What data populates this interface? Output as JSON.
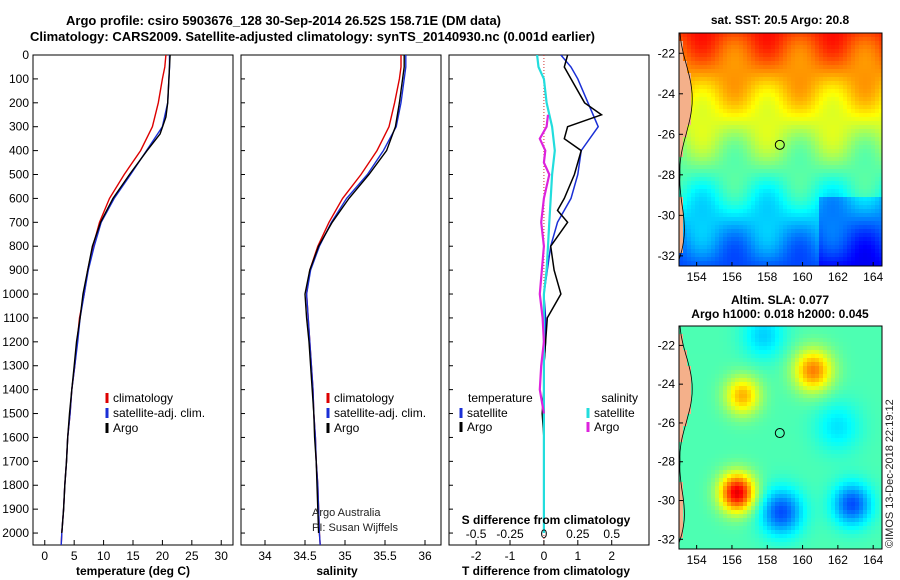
{
  "header": {
    "title_line1": "Argo profile: csiro 5903676_128 30-Sep-2014 26.52S 158.71E (DM data)",
    "title_line2": "Climatology: CARS2009. Satellite-adjusted climatology: synTS_20140930.nc (0.001d earlier)"
  },
  "credit": {
    "org": "Argo Australia",
    "pi": "PI: Susan Wijffels"
  },
  "stamp": "©IMOS 13-Dec-2018 22:19:12",
  "colors": {
    "climatology": "#dd0000",
    "satellite": "#1a2fd6",
    "argo": "#000000",
    "s_satellite": "#22dddd",
    "s_argo": "#dd22dd"
  },
  "chart_data": [
    {
      "type": "line",
      "name": "temperature-profile",
      "xlabel": "temperature (deg C)",
      "ylabel": "",
      "xlim": [
        -2,
        32
      ],
      "ylim": [
        2050,
        0
      ],
      "xticks": [
        0,
        5,
        10,
        15,
        20,
        25,
        30
      ],
      "yticks": [
        0,
        100,
        200,
        300,
        400,
        500,
        600,
        700,
        800,
        900,
        1000,
        1100,
        1200,
        1300,
        1400,
        1500,
        1600,
        1700,
        1800,
        1900,
        2000
      ],
      "legend": [
        "climatology",
        "satellite-adj. clim.",
        "Argo"
      ],
      "series": [
        {
          "name": "climatology",
          "color": "#dd0000",
          "points": [
            [
              20.6,
              0
            ],
            [
              20.4,
              50
            ],
            [
              20.0,
              100
            ],
            [
              19.3,
              200
            ],
            [
              18.3,
              300
            ],
            [
              16.3,
              400
            ],
            [
              13.5,
              500
            ],
            [
              11.0,
              600
            ],
            [
              9.3,
              700
            ],
            [
              8.2,
              800
            ],
            [
              7.3,
              900
            ],
            [
              6.7,
              1000
            ],
            [
              5.9,
              1100
            ],
            [
              5.5,
              1200
            ],
            [
              5.1,
              1300
            ],
            [
              4.6,
              1400
            ],
            [
              4.3,
              1500
            ],
            [
              3.9,
              1600
            ],
            [
              3.7,
              1700
            ],
            [
              3.4,
              1800
            ],
            [
              3.2,
              1900
            ],
            [
              2.9,
              2000
            ],
            [
              2.8,
              2050
            ]
          ]
        },
        {
          "name": "satellite-adj. clim.",
          "color": "#1a2fd6",
          "points": [
            [
              21.2,
              0
            ],
            [
              21.2,
              50
            ],
            [
              21.1,
              100
            ],
            [
              20.9,
              200
            ],
            [
              20.0,
              300
            ],
            [
              17.3,
              400
            ],
            [
              14.6,
              500
            ],
            [
              11.8,
              600
            ],
            [
              9.6,
              700
            ],
            [
              8.4,
              800
            ],
            [
              7.4,
              900
            ],
            [
              6.7,
              1000
            ],
            [
              6.0,
              1100
            ],
            [
              5.6,
              1200
            ],
            [
              5.1,
              1300
            ],
            [
              4.6,
              1400
            ],
            [
              4.3,
              1500
            ],
            [
              3.9,
              1600
            ],
            [
              3.7,
              1700
            ],
            [
              3.4,
              1800
            ],
            [
              3.2,
              1900
            ],
            [
              2.9,
              2000
            ],
            [
              2.8,
              2050
            ]
          ]
        },
        {
          "name": "Argo",
          "color": "#000000",
          "points": [
            [
              21.3,
              0
            ],
            [
              21.2,
              50
            ],
            [
              21.1,
              100
            ],
            [
              20.9,
              200
            ],
            [
              20.6,
              260
            ],
            [
              19.6,
              330
            ],
            [
              17.4,
              400
            ],
            [
              14.4,
              500
            ],
            [
              11.6,
              600
            ],
            [
              9.5,
              700
            ],
            [
              8.1,
              800
            ],
            [
              7.3,
              900
            ],
            [
              6.5,
              1000
            ],
            [
              6.0,
              1100
            ],
            [
              5.4,
              1200
            ],
            [
              5.0,
              1300
            ],
            [
              4.6,
              1400
            ],
            [
              4.2,
              1500
            ],
            [
              3.9,
              1600
            ],
            [
              3.7,
              1700
            ],
            [
              3.4,
              1800
            ],
            [
              3.2,
              1900
            ],
            [
              2.9,
              2000
            ]
          ]
        }
      ]
    },
    {
      "type": "line",
      "name": "salinity-profile",
      "xlabel": "salinity",
      "xlim": [
        33.7,
        36.2
      ],
      "ylim": [
        2050,
        0
      ],
      "xticks": [
        34,
        34.5,
        35,
        35.5,
        36
      ],
      "legend": [
        "climatology",
        "satellite-adj. clim.",
        "Argo"
      ],
      "series": [
        {
          "name": "climatology",
          "color": "#dd0000",
          "points": [
            [
              35.7,
              0
            ],
            [
              35.7,
              50
            ],
            [
              35.68,
              100
            ],
            [
              35.62,
              200
            ],
            [
              35.55,
              300
            ],
            [
              35.4,
              400
            ],
            [
              35.2,
              500
            ],
            [
              34.97,
              600
            ],
            [
              34.8,
              700
            ],
            [
              34.66,
              800
            ],
            [
              34.56,
              900
            ],
            [
              34.52,
              1000
            ],
            [
              34.54,
              1100
            ],
            [
              34.56,
              1200
            ],
            [
              34.58,
              1300
            ],
            [
              34.6,
              1400
            ],
            [
              34.61,
              1500
            ],
            [
              34.63,
              1600
            ],
            [
              34.64,
              1700
            ],
            [
              34.66,
              1800
            ],
            [
              34.67,
              1900
            ],
            [
              34.68,
              2000
            ],
            [
              34.69,
              2050
            ]
          ]
        },
        {
          "name": "satellite-adj. clim.",
          "color": "#1a2fd6",
          "points": [
            [
              35.76,
              0
            ],
            [
              35.76,
              50
            ],
            [
              35.74,
              100
            ],
            [
              35.7,
              200
            ],
            [
              35.64,
              300
            ],
            [
              35.48,
              400
            ],
            [
              35.28,
              500
            ],
            [
              35.02,
              600
            ],
            [
              34.83,
              700
            ],
            [
              34.68,
              800
            ],
            [
              34.57,
              900
            ],
            [
              34.52,
              1000
            ],
            [
              34.54,
              1100
            ],
            [
              34.56,
              1200
            ],
            [
              34.58,
              1300
            ],
            [
              34.6,
              1400
            ],
            [
              34.61,
              1500
            ],
            [
              34.63,
              1600
            ],
            [
              34.64,
              1700
            ],
            [
              34.66,
              1800
            ],
            [
              34.67,
              1900
            ],
            [
              34.68,
              2000
            ],
            [
              34.69,
              2050
            ]
          ]
        },
        {
          "name": "Argo",
          "color": "#000000",
          "points": [
            [
              35.74,
              0
            ],
            [
              35.74,
              50
            ],
            [
              35.72,
              100
            ],
            [
              35.68,
              200
            ],
            [
              35.63,
              300
            ],
            [
              35.52,
              400
            ],
            [
              35.3,
              500
            ],
            [
              35.05,
              600
            ],
            [
              34.84,
              700
            ],
            [
              34.67,
              800
            ],
            [
              34.56,
              900
            ],
            [
              34.5,
              1000
            ],
            [
              34.52,
              1100
            ],
            [
              34.55,
              1200
            ],
            [
              34.57,
              1300
            ],
            [
              34.59,
              1400
            ],
            [
              34.61,
              1500
            ],
            [
              34.62,
              1600
            ],
            [
              34.64,
              1700
            ],
            [
              34.65,
              1800
            ],
            [
              34.66,
              1900
            ],
            [
              34.67,
              2000
            ]
          ]
        }
      ]
    },
    {
      "type": "line",
      "name": "difference-profile",
      "xlabel": "T difference from climatology",
      "xlabel2": "S difference from climatology",
      "xlim": [
        -2.8,
        3.1
      ],
      "ylim": [
        2050,
        0
      ],
      "xticks": [
        -2,
        -1,
        0,
        1,
        2
      ],
      "xticks_s": [
        -0.5,
        -0.25,
        0,
        0.25,
        0.5
      ],
      "xticks_s_labels": [
        "-0.5",
        "-0.25",
        "0",
        "0.25",
        "0.5"
      ],
      "legend_temperature_title": "temperature",
      "legend_salinity_title": "salinity",
      "legend_temperature": [
        "satellite",
        "Argo"
      ],
      "legend_salinity": [
        "satellite",
        "Argo"
      ],
      "series": [
        {
          "name": "T satellite",
          "color": "#1a2fd6",
          "points": [
            [
              0.5,
              0
            ],
            [
              0.8,
              50
            ],
            [
              1.0,
              100
            ],
            [
              1.3,
              200
            ],
            [
              1.6,
              300
            ],
            [
              1.1,
              400
            ],
            [
              1.0,
              500
            ],
            [
              0.8,
              600
            ],
            [
              0.4,
              700
            ],
            [
              0.2,
              800
            ],
            [
              0.1,
              900
            ],
            [
              0.0,
              1000
            ],
            [
              0.05,
              1100
            ],
            [
              0.05,
              1200
            ],
            [
              0.0,
              1300
            ],
            [
              0.0,
              1400
            ],
            [
              0.0,
              1500
            ],
            [
              0.0,
              1600
            ],
            [
              0.0,
              1700
            ],
            [
              0.0,
              1800
            ],
            [
              0.0,
              1900
            ],
            [
              0.0,
              2000
            ]
          ]
        },
        {
          "name": "T Argo",
          "color": "#000000",
          "points": [
            [
              0.7,
              0
            ],
            [
              0.6,
              50
            ],
            [
              0.8,
              100
            ],
            [
              1.2,
              200
            ],
            [
              1.7,
              250
            ],
            [
              0.7,
              300
            ],
            [
              0.6,
              350
            ],
            [
              1.1,
              400
            ],
            [
              0.9,
              500
            ],
            [
              0.6,
              600
            ],
            [
              0.4,
              650
            ],
            [
              0.7,
              700
            ],
            [
              0.2,
              800
            ],
            [
              0.3,
              900
            ],
            [
              0.5,
              1000
            ],
            [
              0.1,
              1100
            ],
            [
              0.05,
              1200
            ],
            [
              0.0,
              1300
            ],
            [
              0.0,
              1400
            ],
            [
              -0.05,
              1500
            ],
            [
              0.0,
              1600
            ],
            [
              0.0,
              1700
            ],
            [
              0.0,
              1800
            ],
            [
              0.0,
              1900
            ],
            [
              0.0,
              2000
            ]
          ]
        },
        {
          "name": "S satellite",
          "color": "#22dddd",
          "points": [
            [
              -0.05,
              0
            ],
            [
              -0.04,
              50
            ],
            [
              0.0,
              100
            ],
            [
              0.02,
              200
            ],
            [
              0.06,
              300
            ],
            [
              0.08,
              400
            ],
            [
              0.06,
              500
            ],
            [
              0.05,
              600
            ],
            [
              0.04,
              700
            ],
            [
              0.03,
              800
            ],
            [
              0.02,
              900
            ],
            [
              0.0,
              1000
            ],
            [
              0.0,
              1100
            ],
            [
              0.0,
              1200
            ],
            [
              0.0,
              1300
            ],
            [
              0.0,
              1400
            ],
            [
              0.0,
              1500
            ],
            [
              0.0,
              1600
            ],
            [
              0.0,
              1700
            ],
            [
              0.0,
              1800
            ],
            [
              0.0,
              1900
            ],
            [
              0.0,
              2000
            ]
          ]
        },
        {
          "name": "S Argo",
          "color": "#dd22dd",
          "points": [
            [
              0.03,
              250
            ],
            [
              0.02,
              300
            ],
            [
              -0.03,
              350
            ],
            [
              0.01,
              400
            ],
            [
              0.0,
              450
            ],
            [
              0.04,
              500
            ],
            [
              0.0,
              600
            ],
            [
              -0.02,
              700
            ],
            [
              0.0,
              800
            ],
            [
              -0.03,
              1000
            ],
            [
              -0.01,
              1100
            ],
            [
              0.0,
              1200
            ],
            [
              -0.02,
              1300
            ],
            [
              -0.03,
              1400
            ],
            [
              0.0,
              1500
            ]
          ]
        }
      ]
    },
    {
      "type": "heatmap",
      "name": "sst-map",
      "title": "sat. SST: 20.5 Argo: 20.8",
      "xlim": [
        153,
        164.5
      ],
      "ylim": [
        -32.5,
        -21
      ],
      "xticks": [
        154,
        156,
        158,
        160,
        162,
        164
      ],
      "yticks": [
        -22,
        -24,
        -26,
        -28,
        -30,
        -32
      ],
      "marker": [
        158.71,
        -26.52
      ]
    },
    {
      "type": "heatmap",
      "name": "sla-map",
      "title": "Altim. SLA: 0.077",
      "subtitle": "Argo h1000: 0.018 h2000: 0.045",
      "xlim": [
        153,
        164.5
      ],
      "ylim": [
        -32.5,
        -21
      ],
      "xticks": [
        154,
        156,
        158,
        160,
        162,
        164
      ],
      "yticks": [
        -22,
        -24,
        -26,
        -28,
        -30,
        -32
      ],
      "marker": [
        158.71,
        -26.52
      ]
    }
  ]
}
